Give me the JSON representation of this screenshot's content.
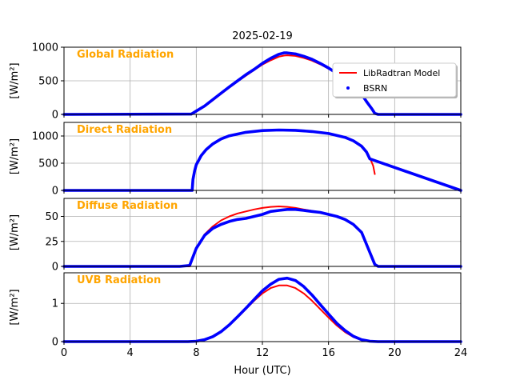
{
  "figure": {
    "title": "2025-02-19",
    "xlabel": "Hour (UTC)",
    "xlim": [
      0,
      24
    ],
    "xticks": [
      0,
      4,
      8,
      12,
      16,
      20,
      24
    ],
    "grid": true,
    "legend": {
      "placement": "upper-right of first panel",
      "entries": [
        {
          "label": "LibRadtran Model",
          "color": "#ff0000",
          "style": "line"
        },
        {
          "label": "BSRN",
          "color": "#0000ff",
          "style": "dots"
        }
      ]
    }
  },
  "chart_data": [
    {
      "type": "line",
      "annotation": "Global Radiation",
      "annotation_color": "#ffa500",
      "ylabel": "[W/m²]",
      "ylim": [
        0,
        1000
      ],
      "yticks": [
        0,
        500,
        1000
      ],
      "x": [
        0,
        7.7,
        8,
        8.5,
        9,
        9.5,
        10,
        10.5,
        11,
        11.5,
        12,
        12.5,
        13,
        13.3,
        13.5,
        14,
        14.5,
        15,
        15.5,
        16,
        16.5,
        17,
        17.5,
        18,
        18.3,
        18.6,
        18.8,
        19,
        24
      ],
      "series": [
        {
          "name": "LibRadtran Model",
          "color": "#ff0000",
          "values": [
            0,
            0,
            40,
            115,
            210,
            305,
            400,
            490,
            575,
            660,
            740,
            805,
            860,
            875,
            880,
            870,
            840,
            800,
            745,
            680,
            605,
            520,
            420,
            300,
            200,
            90,
            20,
            0,
            0
          ]
        },
        {
          "name": "BSRN",
          "color": "#0000ff",
          "values": [
            0,
            5,
            50,
            125,
            220,
            315,
            410,
            500,
            590,
            670,
            760,
            835,
            895,
            915,
            915,
            900,
            865,
            820,
            760,
            690,
            610,
            525,
            420,
            300,
            190,
            90,
            15,
            0,
            0
          ]
        }
      ]
    },
    {
      "type": "line",
      "annotation": "Direct Radiation",
      "annotation_color": "#ffa500",
      "ylabel": "[W/m²]",
      "ylim": [
        0,
        1250
      ],
      "yticks": [
        0,
        500,
        1000
      ],
      "x": [
        0,
        7.75,
        7.8,
        7.9,
        8,
        8.3,
        8.6,
        9,
        9.5,
        10,
        11,
        12,
        13,
        14,
        15,
        16,
        17,
        17.5,
        18,
        18.3,
        18.5,
        18.7,
        18.8,
        24
      ],
      "series": [
        {
          "name": "LibRadtran Model",
          "color": "#ff0000",
          "values": [
            null,
            null,
            210,
            380,
            480,
            650,
            760,
            860,
            950,
            1010,
            1070,
            1100,
            1110,
            1105,
            1085,
            1050,
            980,
            920,
            820,
            720,
            600,
            450,
            300,
            null
          ]
        },
        {
          "name": "BSRN",
          "color": "#0000ff",
          "values": [
            0,
            0,
            200,
            360,
            470,
            640,
            750,
            855,
            945,
            1005,
            1068,
            1100,
            1110,
            1105,
            1083,
            1045,
            975,
            912,
            812,
            705,
            580,
            null,
            null,
            0
          ]
        }
      ]
    },
    {
      "type": "line",
      "annotation": "Diffuse Radiation",
      "annotation_color": "#ffa500",
      "ylabel": "[W/m²]",
      "ylim": [
        0,
        68
      ],
      "yticks": [
        0,
        25,
        50
      ],
      "x": [
        0,
        7,
        7.6,
        8,
        8.5,
        9,
        9.5,
        10,
        10.5,
        11,
        11.5,
        12,
        12.5,
        13,
        13.5,
        14,
        14.5,
        15,
        15.5,
        16,
        16.5,
        17,
        17.5,
        18,
        18.5,
        18.8,
        19,
        24
      ],
      "series": [
        {
          "name": "LibRadtran Model",
          "color": "#ff0000",
          "values": [
            0,
            0,
            0,
            18,
            32,
            40,
            46,
            50,
            53,
            55,
            57,
            58.5,
            59.5,
            60,
            59.5,
            58.5,
            57,
            55.5,
            54,
            52,
            50,
            47,
            42,
            34,
            14,
            2,
            0,
            0
          ]
        },
        {
          "name": "BSRN",
          "color": "#0000ff",
          "values": [
            0,
            0,
            1,
            18,
            31,
            38,
            42,
            45,
            47,
            48,
            50,
            52,
            55,
            56,
            57,
            57,
            56,
            55,
            54,
            52,
            50,
            47,
            42,
            34,
            14,
            2,
            0,
            0
          ]
        }
      ]
    },
    {
      "type": "line",
      "annotation": "UVB Radiation",
      "annotation_color": "#ffa500",
      "ylabel": "[W/m²]",
      "ylim": [
        0,
        1.8
      ],
      "yticks": [
        0,
        1
      ],
      "x": [
        0,
        7.5,
        8,
        8.5,
        9,
        9.5,
        10,
        10.5,
        11,
        11.5,
        12,
        12.5,
        13,
        13.5,
        14,
        14.5,
        15,
        15.5,
        16,
        16.5,
        17,
        17.5,
        18,
        18.5,
        19,
        24
      ],
      "series": [
        {
          "name": "LibRadtran Model",
          "color": "#ff0000",
          "values": [
            0,
            0,
            0.01,
            0.05,
            0.13,
            0.26,
            0.43,
            0.63,
            0.85,
            1.07,
            1.26,
            1.4,
            1.47,
            1.47,
            1.4,
            1.26,
            1.07,
            0.85,
            0.63,
            0.42,
            0.25,
            0.12,
            0.04,
            0.01,
            0,
            0
          ]
        },
        {
          "name": "BSRN",
          "color": "#0000ff",
          "values": [
            0,
            0,
            0.01,
            0.05,
            0.13,
            0.26,
            0.44,
            0.65,
            0.87,
            1.1,
            1.33,
            1.5,
            1.63,
            1.66,
            1.6,
            1.44,
            1.22,
            0.97,
            0.72,
            0.48,
            0.29,
            0.14,
            0.05,
            0.01,
            0,
            0
          ]
        }
      ]
    }
  ]
}
